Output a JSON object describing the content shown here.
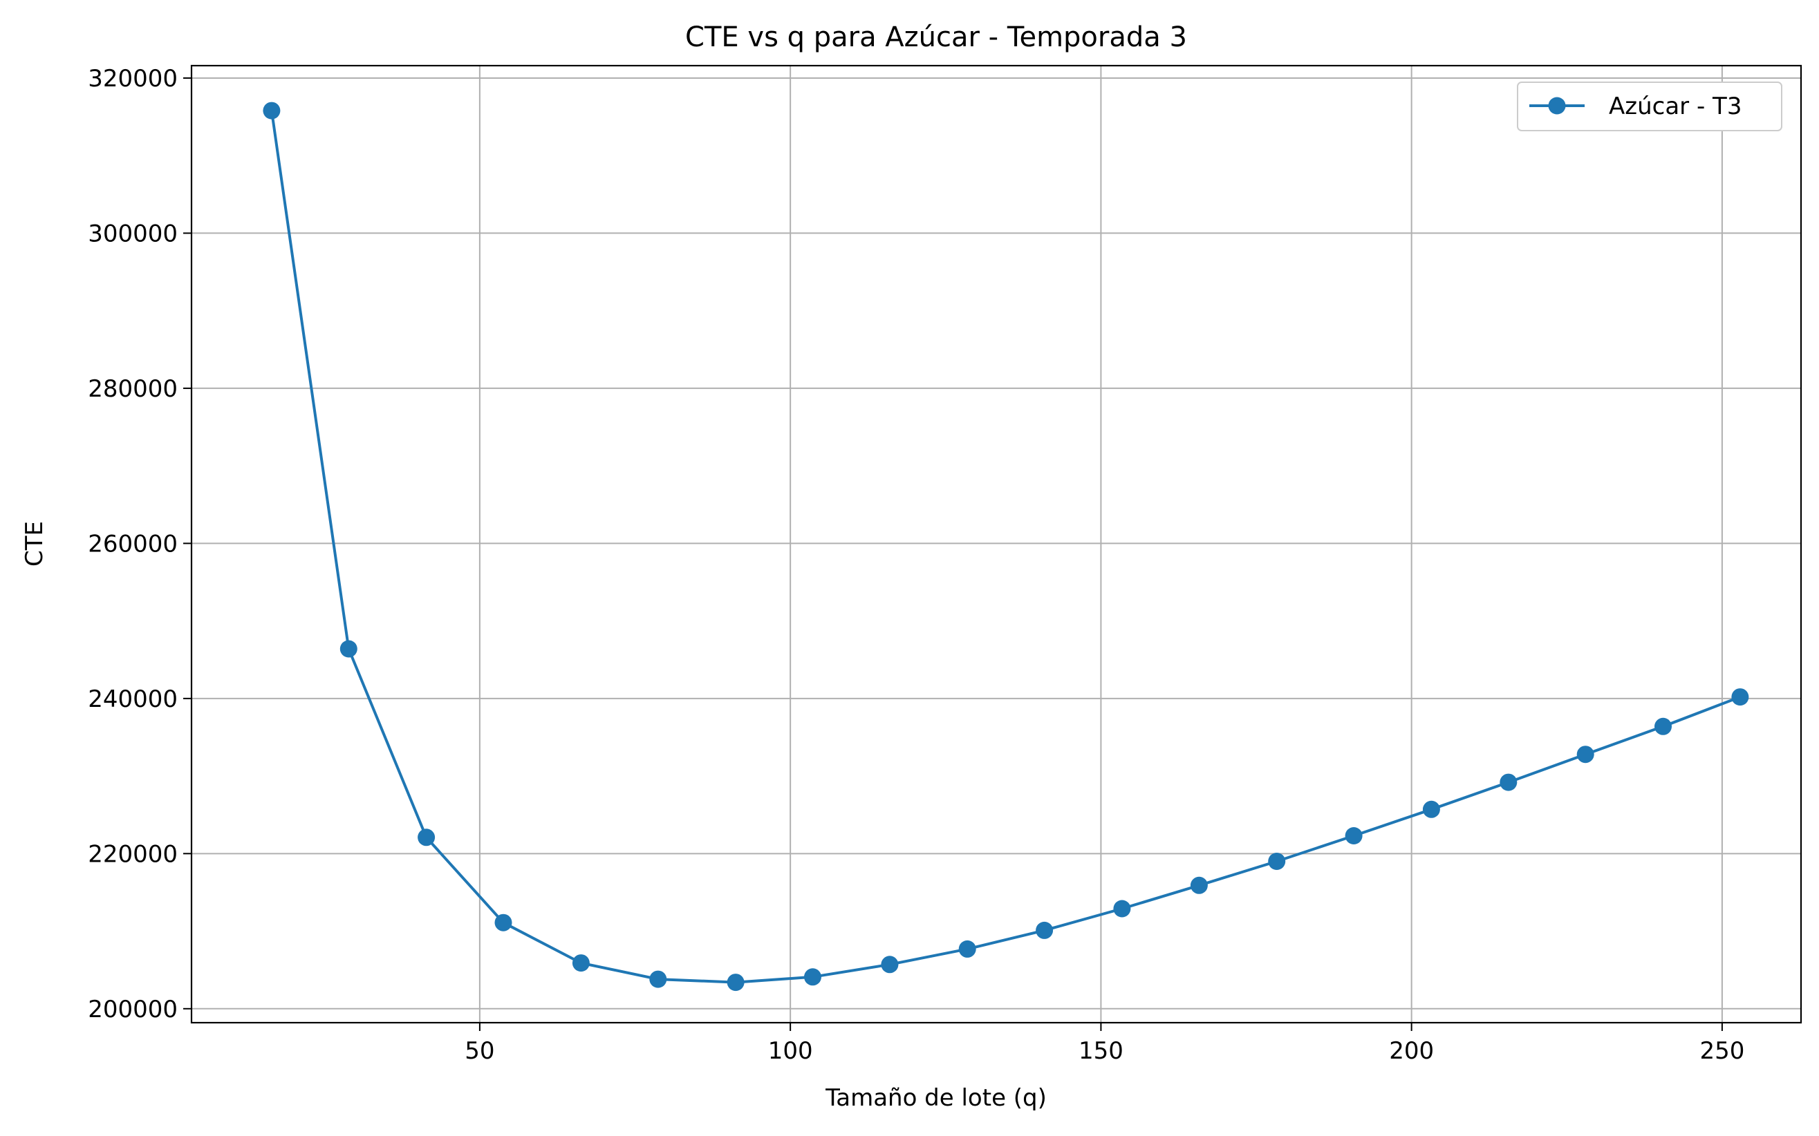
{
  "chart_data": {
    "type": "line",
    "title": "CTE vs q para Azúcar - Temporada 3",
    "xlabel": "Tamaño de lote (q)",
    "ylabel": "CTE",
    "xlim": [
      3.6,
      262.7
    ],
    "ylim": [
      198200,
      321600
    ],
    "xticks": [
      50,
      100,
      150,
      200,
      250
    ],
    "xtick_labels": [
      "50",
      "100",
      "150",
      "200",
      "250"
    ],
    "yticks": [
      200000,
      220000,
      240000,
      260000,
      280000,
      300000,
      320000
    ],
    "ytick_labels": [
      "200000",
      "220000",
      "240000",
      "260000",
      "280000",
      "300000",
      "320000"
    ],
    "grid": true,
    "legend_position": "top-right",
    "series": [
      {
        "name": "Azúcar - T3",
        "color": "#1f77b4",
        "marker": "circle",
        "x": [
          16.5,
          28.9,
          41.4,
          53.8,
          66.3,
          78.7,
          91.2,
          103.6,
          116.0,
          128.5,
          140.9,
          153.4,
          165.8,
          178.3,
          190.7,
          203.2,
          215.6,
          228.0,
          240.5,
          252.9
        ],
        "values": [
          315800,
          246400,
          222100,
          211100,
          205900,
          203800,
          203400,
          204100,
          205700,
          207700,
          210100,
          212900,
          215900,
          219000,
          222300,
          225700,
          229200,
          232800,
          236400,
          240200
        ]
      }
    ]
  }
}
